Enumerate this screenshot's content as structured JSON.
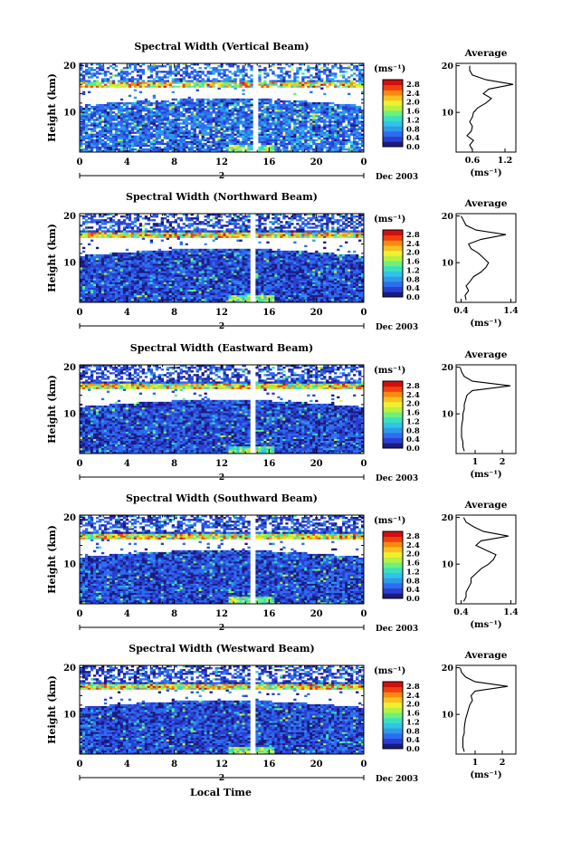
{
  "figure": {
    "xlabel": "Local Time",
    "date_label": "Dec 2003",
    "day_label": "2",
    "unit_label": "(ms⁻¹)",
    "avg_title": "Average",
    "avg_xlabel": "(ms⁻¹)",
    "ylabel": "Height (km)"
  },
  "colors": {
    "scale": [
      "#1a1a80",
      "#2a3fd0",
      "#2d6cf0",
      "#2f9ae8",
      "#30c4e8",
      "#3ae0c0",
      "#6ef07a",
      "#b8f040",
      "#f0f030",
      "#f8c020",
      "#f88a10",
      "#f04010",
      "#d01010"
    ],
    "background": "#ffffff"
  },
  "chart_data": [
    {
      "type": "heatmap",
      "title": "Spectral Width (Vertical Beam)",
      "x_ticks": [
        "0",
        "4",
        "8",
        "12",
        "16",
        "20",
        "0"
      ],
      "y_ticks": [
        "10",
        "20"
      ],
      "xlim": [
        0,
        24
      ],
      "ylim": [
        1.5,
        20.5
      ],
      "colorbar_ticks": [
        "0.0",
        "0.4",
        "0.8",
        "1.2",
        "1.6",
        "2.0",
        "2.4",
        "2.8"
      ],
      "colorbar_range": [
        0,
        3.0
      ],
      "average": {
        "title": "Average",
        "x_ticks": [
          "0.6",
          "1.2"
        ],
        "xlim": [
          0.3,
          1.4
        ],
        "height": [
          2,
          3,
          4,
          5,
          6,
          7,
          8,
          9,
          10,
          11,
          12,
          13,
          14,
          15,
          16,
          17,
          18,
          19,
          20
        ],
        "values": [
          0.6,
          0.55,
          0.62,
          0.5,
          0.58,
          0.6,
          0.55,
          0.6,
          0.62,
          0.7,
          0.85,
          0.95,
          0.8,
          0.9,
          1.35,
          0.85,
          0.6,
          0.55,
          0.55
        ]
      }
    },
    {
      "type": "heatmap",
      "title": "Spectral Width (Northward Beam)",
      "x_ticks": [
        "0",
        "4",
        "8",
        "12",
        "16",
        "20",
        "0"
      ],
      "y_ticks": [
        "10",
        "20"
      ],
      "xlim": [
        0,
        24
      ],
      "ylim": [
        1.5,
        20.5
      ],
      "colorbar_ticks": [
        "0.0",
        "0.4",
        "0.8",
        "1.2",
        "1.6",
        "2.0",
        "2.4",
        "2.8"
      ],
      "colorbar_range": [
        0,
        3.0
      ],
      "average": {
        "title": "Average",
        "x_ticks": [
          "0.4",
          "1.4"
        ],
        "xlim": [
          0.3,
          1.5
        ],
        "height": [
          2,
          3,
          4,
          5,
          6,
          7,
          8,
          9,
          10,
          11,
          12,
          13,
          14,
          15,
          16,
          17,
          18,
          19,
          20
        ],
        "values": [
          0.5,
          0.48,
          0.55,
          0.5,
          0.58,
          0.65,
          0.8,
          0.9,
          0.95,
          0.85,
          0.75,
          0.6,
          0.55,
          0.8,
          1.3,
          0.7,
          0.5,
          0.45,
          0.4
        ]
      }
    },
    {
      "type": "heatmap",
      "title": "Spectral Width (Eastward Beam)",
      "x_ticks": [
        "0",
        "4",
        "8",
        "12",
        "16",
        "20",
        "0"
      ],
      "y_ticks": [
        "10",
        "20"
      ],
      "xlim": [
        0,
        24
      ],
      "ylim": [
        1.5,
        20.5
      ],
      "colorbar_ticks": [
        "0.0",
        "0.4",
        "0.8",
        "1.2",
        "1.6",
        "2.0",
        "2.4",
        "2.8"
      ],
      "colorbar_range": [
        0,
        3.0
      ],
      "average": {
        "title": "Average",
        "x_ticks": [
          "1",
          "2"
        ],
        "xlim": [
          0.3,
          2.5
        ],
        "height": [
          2,
          3,
          4,
          5,
          6,
          7,
          8,
          9,
          10,
          11,
          12,
          13,
          14,
          15,
          16,
          17,
          18,
          19,
          20
        ],
        "values": [
          0.6,
          0.55,
          0.55,
          0.5,
          0.5,
          0.5,
          0.52,
          0.55,
          0.55,
          0.6,
          0.6,
          0.65,
          0.7,
          0.9,
          2.3,
          0.9,
          0.6,
          0.5,
          0.45
        ]
      }
    },
    {
      "type": "heatmap",
      "title": "Spectral Width (Southward Beam)",
      "x_ticks": [
        "0",
        "4",
        "8",
        "12",
        "16",
        "20",
        "0"
      ],
      "y_ticks": [
        "10",
        "20"
      ],
      "xlim": [
        0,
        24
      ],
      "ylim": [
        1.5,
        20.5
      ],
      "colorbar_ticks": [
        "0.0",
        "0.4",
        "0.8",
        "1.2",
        "1.6",
        "2.0",
        "2.4",
        "2.8"
      ],
      "colorbar_range": [
        0,
        3.0
      ],
      "average": {
        "title": "Average",
        "x_ticks": [
          "0.4",
          "1.4"
        ],
        "xlim": [
          0.3,
          1.5
        ],
        "height": [
          2,
          3,
          4,
          5,
          6,
          7,
          8,
          9,
          10,
          11,
          12,
          13,
          14,
          15,
          16,
          17,
          18,
          19,
          20
        ],
        "values": [
          0.45,
          0.5,
          0.5,
          0.55,
          0.6,
          0.6,
          0.7,
          0.8,
          0.95,
          1.05,
          1.1,
          0.9,
          0.7,
          0.8,
          1.35,
          0.85,
          0.65,
          0.5,
          0.45
        ]
      }
    },
    {
      "type": "heatmap",
      "title": "Spectral Width (Westward Beam)",
      "x_ticks": [
        "0",
        "4",
        "8",
        "12",
        "16",
        "20",
        "0"
      ],
      "y_ticks": [
        "10",
        "20"
      ],
      "xlim": [
        0,
        24
      ],
      "ylim": [
        1.5,
        20.5
      ],
      "colorbar_ticks": [
        "0.0",
        "0.4",
        "0.8",
        "1.2",
        "1.6",
        "2.0",
        "2.4",
        "2.8"
      ],
      "colorbar_range": [
        0,
        3.0
      ],
      "average": {
        "title": "Average",
        "x_ticks": [
          "1",
          "2"
        ],
        "xlim": [
          0.3,
          2.5
        ],
        "height": [
          2,
          3,
          4,
          5,
          6,
          7,
          8,
          9,
          10,
          11,
          12,
          13,
          14,
          15,
          16,
          17,
          18,
          19,
          20
        ],
        "values": [
          0.6,
          0.55,
          0.55,
          0.55,
          0.6,
          0.6,
          0.62,
          0.65,
          0.7,
          0.75,
          0.8,
          0.9,
          0.85,
          1.0,
          2.2,
          1.0,
          0.65,
          0.5,
          0.45
        ]
      }
    }
  ]
}
